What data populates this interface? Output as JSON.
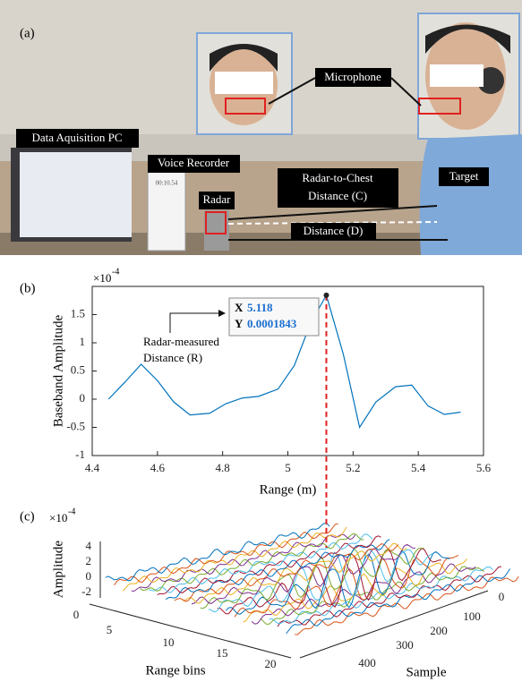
{
  "panel_a": {
    "label": "(a)",
    "microphone": "Microphone",
    "pc": "Data Aquisition PC",
    "recorder": "Voice Recorder",
    "radar": "Radar",
    "chest": [
      "Radar-to-Chest",
      "Distance (C)"
    ],
    "target": "Target",
    "distance": "Distance (D)",
    "clock": "00:10.54"
  },
  "chart_data": {
    "type": "line",
    "panel_label": "(b)",
    "x_label": "Range (m)",
    "y_label": "Baseband Amplitude",
    "y_multiplier": "×10",
    "y_multiplier_exponent": "-4",
    "annotation": [
      "Radar-measured",
      "Distance (R)"
    ],
    "datatip": {
      "x_label": "X",
      "x_value": 5.118,
      "y_label": "Y",
      "y_value": 0.0001843
    },
    "x": [
      4.45,
      4.5,
      4.55,
      4.6,
      4.65,
      4.7,
      4.76,
      4.81,
      4.86,
      4.91,
      4.97,
      5.02,
      5.07,
      5.118,
      5.17,
      5.22,
      5.27,
      5.33,
      5.38,
      5.43,
      5.48,
      5.53
    ],
    "series": [
      {
        "color": "#0072bd",
        "values": [
          0,
          0.3,
          0.62,
          0.33,
          -0.05,
          -0.28,
          -0.25,
          -0.08,
          0.02,
          0.05,
          0.18,
          0.6,
          1.35,
          1.843,
          0.8,
          -0.5,
          -0.05,
          0.22,
          0.25,
          -0.12,
          -0.27,
          -0.23
        ]
      }
    ],
    "xlim": [
      4.4,
      5.6
    ],
    "xticks": [
      4.4,
      4.6,
      4.8,
      5,
      5.2,
      5.4,
      5.6
    ],
    "ylim": [
      -1,
      2
    ],
    "yticks": [
      -1,
      -0.5,
      0,
      0.5,
      1,
      1.5
    ]
  },
  "panel_c": {
    "label": "(c)",
    "multiplier": "×10",
    "multiplier_exponent": "-4",
    "z_label": "Amplitude",
    "z_ticks": [
      "4",
      "2",
      "0",
      "-2"
    ],
    "bins_label": "Range bins",
    "bins_ticks": [
      "0",
      "5",
      "10",
      "15",
      "20"
    ],
    "sample_label": "Sample",
    "sample_ticks": [
      "0",
      "100",
      "200",
      "300",
      "400"
    ]
  }
}
